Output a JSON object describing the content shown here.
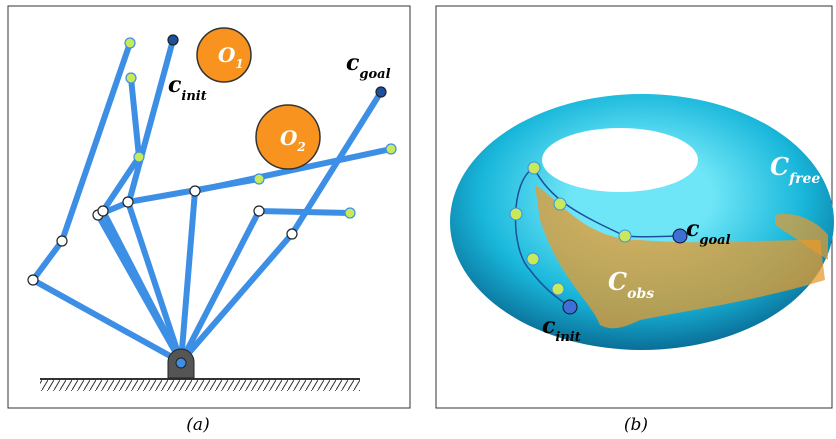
{
  "panel_a": {
    "caption": "(a)",
    "obstacles": [
      {
        "main": "O",
        "sub": "1"
      },
      {
        "main": "O",
        "sub": "2"
      }
    ],
    "init": {
      "main": "c",
      "sub": "init"
    },
    "goal": {
      "main": "c",
      "sub": "goal"
    }
  },
  "panel_b": {
    "caption": "(b)",
    "free": {
      "main": "C",
      "sub": "free"
    },
    "obs": {
      "main": "C",
      "sub": "obs"
    },
    "init": {
      "main": "c",
      "sub": "init"
    },
    "goal": {
      "main": "c",
      "sub": "goal"
    }
  }
}
